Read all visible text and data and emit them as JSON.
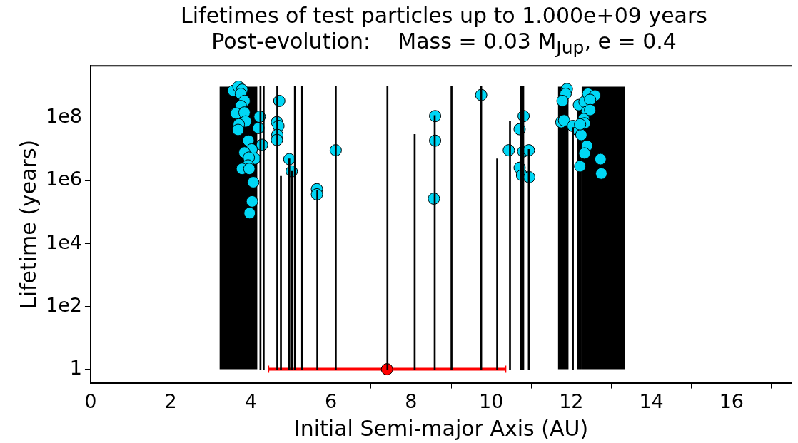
{
  "chart_data": {
    "type": "bar",
    "title": "Lifetimes of test particles up to 1.000e+09 years",
    "subtitle": "Post-evolution:    Mass = 0.03 M$_{Jup}$, e = 0.4",
    "xlabel": "Initial Semi-major Axis (AU)",
    "ylabel": "Lifetime (years)",
    "log": "y",
    "marker": "circle",
    "xlim": [
      0,
      17.5
    ],
    "xticks": [
      0,
      2,
      4,
      6,
      8,
      10,
      12,
      14,
      16
    ],
    "ylim": [
      0.37,
      4600000000.0
    ],
    "yticks": [
      1,
      {
        "value": 100,
        "label": "1e2"
      },
      {
        "value": 10000,
        "label": "1e4"
      },
      {
        "value": 1000000,
        "label": "1e6"
      },
      {
        "value": 100000000,
        "label": "1e8"
      }
    ],
    "series": [
      {
        "type": "histogram",
        "color": "#000000",
        "bins": [
          3.22,
          4.16
        ],
        "values": [
          1000000000.0
        ],
        "base": [
          1
        ]
      },
      {
        "color": "#000000",
        "x": [
          4.24,
          4.32,
          4.66,
          4.75,
          4.96,
          5.02,
          5.1,
          5.28,
          5.66,
          6.12,
          7.41,
          8.09,
          8.59,
          9.01,
          9.75,
          10.15,
          10.47,
          10.75,
          10.8,
          10.94
        ],
        "values": [
          1000000000.0,
          1000000000.0,
          1000000000.0,
          1400000.0,
          5000000.0,
          2000000.0,
          1000000000.0,
          1000000000.0,
          500000.0,
          1000000000.0,
          1000000000.0,
          30000000.0,
          120000000.0,
          1000000000.0,
          1000000000.0,
          5000000.0,
          80000000.0,
          1000000000.0,
          1000000000.0,
          10000000.0
        ],
        "base": [
          1,
          1,
          1,
          1,
          1,
          1,
          1,
          1,
          1,
          1,
          1,
          1,
          1,
          1,
          1,
          1,
          1,
          1,
          1,
          1
        ]
      },
      {
        "type": "histogram",
        "color": "#000000",
        "bins": [
          11.67,
          11.93
        ],
        "values": [
          1000000000.0
        ],
        "base": [
          1
        ]
      },
      {
        "color": "#000000",
        "x": [
          12.04
        ],
        "values": [
          50000000.0
        ],
        "base": [
          1
        ]
      },
      {
        "type": "histogram",
        "color": "#000000",
        "bins": [
          12.14,
          12.26,
          13.34
        ],
        "values": [
          200000000.0,
          1000000000.0
        ],
        "base": [
          1,
          1
        ]
      },
      {
        "type": "scatter",
        "color": "#00d7f5",
        "x": [
          3.56,
          3.69,
          3.78,
          3.75,
          3.84,
          3.75,
          3.63,
          3.84,
          3.87,
          3.7,
          3.68,
          4.22,
          4.19,
          4.28,
          3.94,
          4.02,
          3.84,
          4.1,
          3.95,
          3.93,
          3.78,
          3.96,
          4.06,
          4.03,
          3.97,
          4.71,
          4.65,
          4.69,
          4.66,
          4.65,
          4.96,
          5.02,
          5.65,
          5.65,
          6.12,
          8.6,
          8.6,
          8.57,
          9.75,
          10.44,
          10.81,
          10.71,
          10.8,
          10.94,
          10.71,
          10.77,
          10.95,
          11.89,
          11.86,
          11.78,
          11.75,
          11.82,
          12.19,
          12.04,
          12.18,
          12.25,
          12.33,
          12.42,
          12.59,
          12.47,
          12.39,
          12.47,
          12.31,
          12.33,
          12.22,
          12.39,
          12.33,
          12.22,
          12.73,
          12.75
        ],
        "values": [
          740000000.0,
          1000000000.0,
          800000000.0,
          590000000.0,
          350000000.0,
          240000000.0,
          140000000.0,
          150000000.0,
          78000000.0,
          63000000.0,
          42000000.0,
          110000000.0,
          48000000.0,
          14000000.0,
          19000000.0,
          10000000.0,
          8000000.0,
          5100000.0,
          5500000.0,
          3100000.0,
          2400000.0,
          2400000.0,
          900000.0,
          220000.0,
          93000.0,
          350000000.0,
          74000000.0,
          56000000.0,
          29000000.0,
          20000000.0,
          4900000.0,
          2000000.0,
          540000.0,
          370000.0,
          9400000.0,
          115000000.0,
          19000000.0,
          270000.0,
          540000000.0,
          9400000.0,
          115000000.0,
          44000000.0,
          8600000.0,
          9400000.0,
          2600000.0,
          1500000.0,
          1300000.0,
          840000000.0,
          590000000.0,
          350000000.0,
          74000000.0,
          84000000.0,
          260000000.0,
          56000000.0,
          39000000.0,
          29000000.0,
          330000000.0,
          590000000.0,
          520000000.0,
          380000000.0,
          160000000.0,
          180000000.0,
          93000000.0,
          68000000.0,
          63000000.0,
          13000000.0,
          7500000.0,
          2900000.0,
          4900000.0,
          1700000.0
        ]
      },
      {
        "type": "scatter",
        "color": "#ff0000",
        "x": [
          7.4
        ],
        "values": [
          1
        ],
        "xerrors": [
          2.96
        ]
      }
    ]
  }
}
